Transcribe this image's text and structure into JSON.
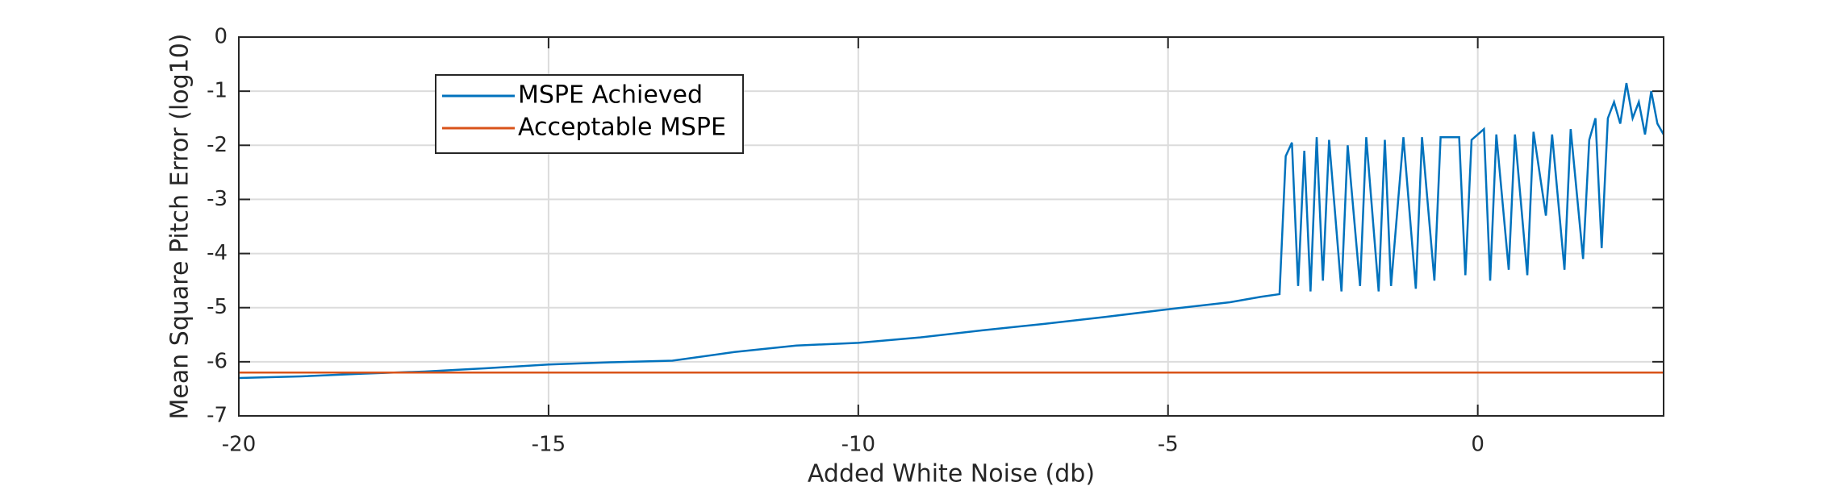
{
  "chart_data": {
    "type": "line",
    "xlabel": "Added White Noise (db)",
    "ylabel": "Mean Square Pitch Error (log10)",
    "xlim": [
      -20,
      3
    ],
    "ylim": [
      -7,
      0
    ],
    "xticks": [
      -20,
      -15,
      -10,
      -5,
      0
    ],
    "yticks": [
      0,
      -1,
      -2,
      -3,
      -4,
      -5,
      -6,
      -7
    ],
    "grid": true,
    "legend": "upper left",
    "series": [
      {
        "name": "MSPE Achieved",
        "color": "#0072bd",
        "x": [
          -20,
          -19,
          -18,
          -17,
          -16,
          -15,
          -14,
          -13,
          -12,
          -11,
          -10,
          -9,
          -8,
          -7,
          -6,
          -5,
          -4,
          -3.5,
          -3.2,
          -3.1,
          -3.0,
          -2.9,
          -2.8,
          -2.7,
          -2.6,
          -2.5,
          -2.4,
          -2.2,
          -2.1,
          -1.9,
          -1.8,
          -1.6,
          -1.5,
          -1.4,
          -1.2,
          -1.0,
          -0.9,
          -0.7,
          -0.6,
          -0.3,
          -0.2,
          -0.1,
          0.1,
          0.2,
          0.3,
          0.5,
          0.6,
          0.8,
          0.9,
          1.1,
          1.2,
          1.4,
          1.5,
          1.7,
          1.8,
          1.9,
          2.0,
          2.1,
          2.2,
          2.3,
          2.4,
          2.5,
          2.6,
          2.7,
          2.8,
          2.9,
          3.0
        ],
        "values": [
          -6.3,
          -6.27,
          -6.22,
          -6.18,
          -6.12,
          -6.05,
          -6.01,
          -5.98,
          -5.82,
          -5.7,
          -5.65,
          -5.55,
          -5.42,
          -5.3,
          -5.17,
          -5.03,
          -4.9,
          -4.8,
          -4.75,
          -2.2,
          -1.95,
          -4.6,
          -2.1,
          -4.7,
          -1.85,
          -4.5,
          -1.9,
          -4.7,
          -2.0,
          -4.6,
          -1.85,
          -4.7,
          -1.9,
          -4.6,
          -1.85,
          -4.65,
          -1.85,
          -4.5,
          -1.85,
          -1.85,
          -4.4,
          -1.9,
          -1.7,
          -4.5,
          -1.8,
          -4.3,
          -1.8,
          -4.4,
          -1.75,
          -3.3,
          -1.8,
          -4.3,
          -1.7,
          -4.1,
          -1.9,
          -1.5,
          -3.9,
          -1.5,
          -1.2,
          -1.6,
          -0.85,
          -1.5,
          -1.2,
          -1.8,
          -1.0,
          -1.6,
          -1.8
        ]
      },
      {
        "name": "Acceptable MSPE",
        "color": "#d95319",
        "x": [
          -20,
          3
        ],
        "values": [
          -6.2,
          -6.2
        ]
      }
    ]
  }
}
